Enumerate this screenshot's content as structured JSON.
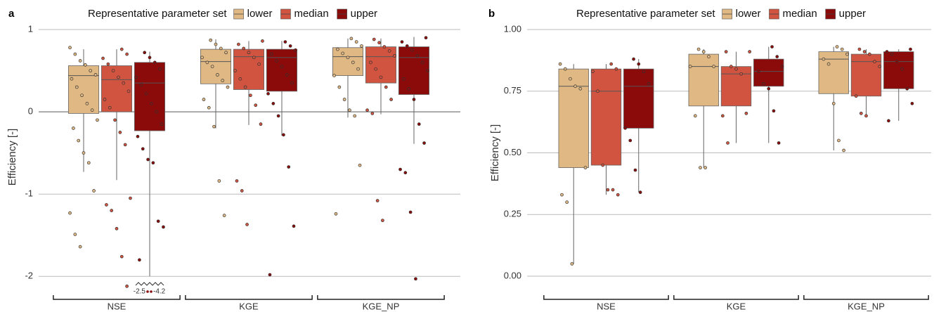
{
  "chart_data": [
    {
      "type": "box",
      "panel_label": "a",
      "legend_title": "Representative parameter set",
      "y_label": "Efficiency [-]",
      "categories": [
        "NSE",
        "KGE",
        "KGE_NP"
      ],
      "ylim": [
        -2.1,
        1
      ],
      "yticks": [
        1,
        0,
        -1,
        -2
      ],
      "annotations": [
        "-2.5",
        "-4.2"
      ],
      "series": [
        {
          "name": "lower",
          "color": "#e0b884",
          "boxes": [
            {
              "min": -0.73,
              "q1": -0.02,
              "median": 0.44,
              "q3": 0.56,
              "max": 0.76,
              "points": [
                0.78,
                0.7,
                0.62,
                0.57,
                0.5,
                0.45,
                0.4,
                0.3,
                0.2,
                0.1,
                0.02,
                -0.1,
                -0.2,
                -0.35,
                -0.5,
                -0.62,
                -0.96,
                -1.23,
                -1.49,
                -1.64
              ]
            },
            {
              "min": -0.2,
              "q1": 0.34,
              "median": 0.61,
              "q3": 0.76,
              "max": 0.88,
              "points": [
                0.87,
                0.82,
                0.77,
                0.72,
                0.66,
                0.6,
                0.55,
                0.45,
                0.38,
                0.3,
                0.15,
                0.05,
                -0.18,
                -0.84,
                -1.26
              ]
            },
            {
              "min": -0.07,
              "q1": 0.44,
              "median": 0.67,
              "q3": 0.78,
              "max": 0.89,
              "points": [
                0.89,
                0.85,
                0.8,
                0.76,
                0.71,
                0.66,
                0.6,
                0.52,
                0.44,
                0.3,
                0.15,
                0.02,
                -0.05,
                -0.65,
                -1.24
              ]
            }
          ]
        },
        {
          "name": "median",
          "color": "#d05440",
          "boxes": [
            {
              "min": -0.83,
              "q1": 0.0,
              "median": 0.39,
              "q3": 0.56,
              "max": 0.76,
              "points": [
                0.76,
                0.7,
                0.65,
                0.58,
                0.5,
                0.42,
                0.35,
                0.25,
                0.15,
                0.05,
                -0.1,
                -0.25,
                -0.4,
                -1.05,
                -1.13,
                -1.2,
                -1.42,
                -1.76,
                -2.12
              ]
            },
            {
              "min": -0.16,
              "q1": 0.27,
              "median": 0.67,
              "q3": 0.76,
              "max": 0.86,
              "points": [
                0.86,
                0.82,
                0.77,
                0.72,
                0.66,
                0.58,
                0.5,
                0.4,
                0.3,
                0.2,
                0.08,
                -0.15,
                -0.84,
                -0.96,
                -1.37
              ]
            },
            {
              "min": -0.03,
              "q1": 0.35,
              "median": 0.67,
              "q3": 0.79,
              "max": 0.89,
              "points": [
                0.88,
                0.84,
                0.79,
                0.74,
                0.68,
                0.6,
                0.52,
                0.42,
                0.3,
                0.15,
                0.02,
                -0.02,
                -1.08,
                -1.32
              ]
            }
          ]
        },
        {
          "name": "upper",
          "color": "#8b0a0a",
          "boxes": [
            {
              "min": -2.0,
              "q1": -0.23,
              "median": 0.35,
              "q3": 0.6,
              "max": 0.73,
              "points": [
                0.72,
                0.66,
                0.6,
                0.52,
                0.42,
                0.33,
                0.22,
                0.1,
                0.0,
                -0.15,
                -0.3,
                -0.45,
                -0.58,
                -0.62,
                -1.33,
                -1.4,
                -1.8
              ]
            },
            {
              "min": -0.29,
              "q1": 0.25,
              "median": 0.66,
              "q3": 0.76,
              "max": 0.86,
              "points": [
                0.85,
                0.8,
                0.75,
                0.7,
                0.62,
                0.55,
                0.45,
                0.35,
                0.22,
                0.1,
                -0.05,
                -0.28,
                -0.67,
                -1.39,
                -1.98
              ]
            },
            {
              "min": -0.39,
              "q1": 0.21,
              "median": 0.66,
              "q3": 0.79,
              "max": 0.91,
              "points": [
                0.9,
                0.85,
                0.8,
                0.75,
                0.68,
                0.6,
                0.5,
                0.4,
                0.28,
                0.15,
                -0.15,
                -0.38,
                -0.7,
                -0.74,
                -1.22,
                -2.03
              ]
            }
          ]
        }
      ]
    },
    {
      "type": "box",
      "panel_label": "b",
      "legend_title": "Representative parameter set",
      "y_label": "Efficiency [-]",
      "categories": [
        "NSE",
        "KGE",
        "KGE_NP"
      ],
      "ylim": [
        0,
        1
      ],
      "yticks": [
        {
          "value": 0,
          "label": "0.00"
        },
        {
          "value": 0.25,
          "label": "0.25"
        },
        {
          "value": 0.5,
          "label": "0.50"
        },
        {
          "value": 0.75,
          "label": "0.75"
        },
        {
          "value": 1,
          "label": "1.00"
        }
      ],
      "series": [
        {
          "name": "lower",
          "color": "#e0b884",
          "boxes": [
            {
              "min": 0.05,
              "q1": 0.44,
              "median": 0.77,
              "q3": 0.84,
              "max": 0.86,
              "points": [
                0.86,
                0.84,
                0.8,
                0.77,
                0.76,
                0.44,
                0.33,
                0.3,
                0.05
              ]
            },
            {
              "min": 0.44,
              "q1": 0.69,
              "median": 0.85,
              "q3": 0.9,
              "max": 0.92,
              "points": [
                0.92,
                0.91,
                0.89,
                0.85,
                0.85,
                0.65,
                0.44,
                0.44
              ]
            },
            {
              "min": 0.51,
              "q1": 0.74,
              "median": 0.88,
              "q3": 0.91,
              "max": 0.93,
              "points": [
                0.93,
                0.92,
                0.9,
                0.88,
                0.86,
                0.7,
                0.55,
                0.51
              ]
            }
          ]
        },
        {
          "name": "median",
          "color": "#d05440",
          "boxes": [
            {
              "min": 0.33,
              "q1": 0.45,
              "median": 0.75,
              "q3": 0.84,
              "max": 0.86,
              "points": [
                0.86,
                0.84,
                0.83,
                0.75,
                0.45,
                0.35,
                0.35,
                0.33
              ]
            },
            {
              "min": 0.54,
              "q1": 0.69,
              "median": 0.82,
              "q3": 0.85,
              "max": 0.91,
              "points": [
                0.91,
                0.91,
                0.85,
                0.84,
                0.82,
                0.66,
                0.65,
                0.54
              ]
            },
            {
              "min": 0.65,
              "q1": 0.73,
              "median": 0.87,
              "q3": 0.9,
              "max": 0.92,
              "points": [
                0.92,
                0.91,
                0.9,
                0.87,
                0.85,
                0.73,
                0.66,
                0.65
              ]
            }
          ]
        },
        {
          "name": "upper",
          "color": "#8b0a0a",
          "boxes": [
            {
              "min": 0.34,
              "q1": 0.6,
              "median": 0.77,
              "q3": 0.84,
              "max": 0.88,
              "points": [
                0.88,
                0.86,
                0.83,
                0.78,
                0.6,
                0.55,
                0.43,
                0.34
              ]
            },
            {
              "min": 0.54,
              "q1": 0.77,
              "median": 0.83,
              "q3": 0.88,
              "max": 0.93,
              "points": [
                0.93,
                0.89,
                0.85,
                0.83,
                0.78,
                0.76,
                0.67,
                0.54
              ]
            },
            {
              "min": 0.63,
              "q1": 0.76,
              "median": 0.87,
              "q3": 0.91,
              "max": 0.92,
              "points": [
                0.92,
                0.91,
                0.9,
                0.87,
                0.84,
                0.76,
                0.7,
                0.63
              ]
            }
          ]
        }
      ]
    }
  ]
}
